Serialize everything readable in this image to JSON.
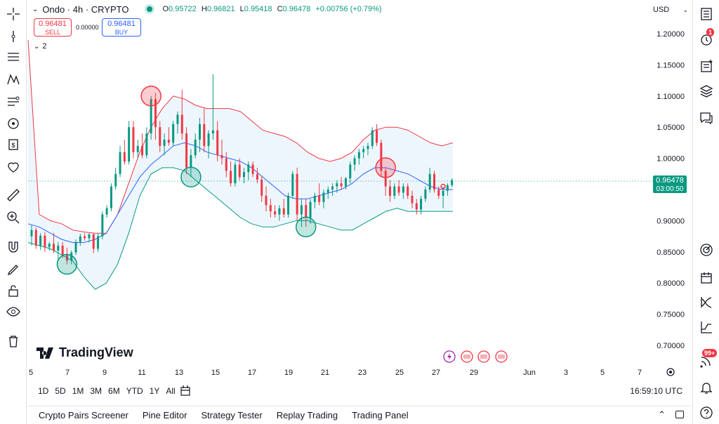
{
  "header": {
    "symbol": "Ondo · 4h · CRYPTO",
    "open_label": "O",
    "open": "0.95722",
    "high_label": "H",
    "high": "0.96821",
    "low_label": "L",
    "low": "0.95418",
    "close_label": "C",
    "close": "0.96478",
    "change": "+0.00756 (+0.79%)",
    "currency": "USD"
  },
  "trade": {
    "sell_price": "0.96481",
    "sell_label": "SELL",
    "spread": "0.00000",
    "buy_price": "0.96481",
    "buy_label": "BUY",
    "indicators_count": "2"
  },
  "price_axis": {
    "ticks": [
      "1.20000",
      "1.15000",
      "1.10000",
      "1.05000",
      "1.00000",
      "0.95000",
      "0.90000",
      "0.85000",
      "0.80000",
      "0.75000",
      "0.70000"
    ],
    "current_price": "0.96478",
    "countdown": "03:00:50"
  },
  "time_axis": {
    "ticks": [
      "5",
      "7",
      "9",
      "11",
      "13",
      "15",
      "17",
      "19",
      "21",
      "23",
      "25",
      "27",
      "29",
      "Jun",
      "3",
      "5",
      "7"
    ]
  },
  "ranges": [
    "1D",
    "5D",
    "1M",
    "3M",
    "6M",
    "YTD",
    "1Y",
    "All"
  ],
  "utc_time": "16:59:10 UTC",
  "bottom_tabs": [
    "Crypto Pairs Screener",
    "Pine Editor",
    "Strategy Tester",
    "Replay Trading",
    "Trading Panel"
  ],
  "logo_text": "TradingView",
  "badges": {
    "alerts": "1",
    "notifications": "99+"
  },
  "colors": {
    "up": "#089981",
    "down": "#f23645",
    "basis": "#2962ff",
    "upper": "#f23645",
    "lower": "#089981",
    "fill": "#e3f0fb"
  },
  "chart_data": {
    "type": "candlestick",
    "interval": "4h",
    "ylim": [
      0.68,
      1.22
    ],
    "candles": [
      {
        "o": 0.875,
        "h": 0.893,
        "l": 0.86,
        "c": 0.885
      },
      {
        "o": 0.885,
        "h": 0.889,
        "l": 0.855,
        "c": 0.86
      },
      {
        "o": 0.86,
        "h": 0.88,
        "l": 0.853,
        "c": 0.876
      },
      {
        "o": 0.876,
        "h": 0.882,
        "l": 0.85,
        "c": 0.858
      },
      {
        "o": 0.858,
        "h": 0.866,
        "l": 0.852,
        "c": 0.863
      },
      {
        "o": 0.863,
        "h": 0.88,
        "l": 0.848,
        "c": 0.852
      },
      {
        "o": 0.852,
        "h": 0.866,
        "l": 0.835,
        "c": 0.86
      },
      {
        "o": 0.86,
        "h": 0.866,
        "l": 0.84,
        "c": 0.845
      },
      {
        "o": 0.845,
        "h": 0.857,
        "l": 0.83,
        "c": 0.836
      },
      {
        "o": 0.836,
        "h": 0.852,
        "l": 0.83,
        "c": 0.849
      },
      {
        "o": 0.849,
        "h": 0.87,
        "l": 0.845,
        "c": 0.866
      },
      {
        "o": 0.866,
        "h": 0.879,
        "l": 0.86,
        "c": 0.875
      },
      {
        "o": 0.875,
        "h": 0.88,
        "l": 0.868,
        "c": 0.872
      },
      {
        "o": 0.872,
        "h": 0.88,
        "l": 0.865,
        "c": 0.878
      },
      {
        "o": 0.878,
        "h": 0.88,
        "l": 0.848,
        "c": 0.855
      },
      {
        "o": 0.855,
        "h": 0.88,
        "l": 0.85,
        "c": 0.875
      },
      {
        "o": 0.875,
        "h": 0.915,
        "l": 0.87,
        "c": 0.91
      },
      {
        "o": 0.91,
        "h": 0.925,
        "l": 0.905,
        "c": 0.92
      },
      {
        "o": 0.92,
        "h": 0.96,
        "l": 0.915,
        "c": 0.955
      },
      {
        "o": 0.955,
        "h": 0.985,
        "l": 0.95,
        "c": 0.975
      },
      {
        "o": 0.975,
        "h": 1.02,
        "l": 0.97,
        "c": 1.01
      },
      {
        "o": 1.01,
        "h": 1.03,
        "l": 0.99,
        "c": 0.995
      },
      {
        "o": 0.995,
        "h": 1.06,
        "l": 0.99,
        "c": 1.05
      },
      {
        "o": 1.05,
        "h": 1.06,
        "l": 1.0,
        "c": 1.01
      },
      {
        "o": 1.01,
        "h": 1.03,
        "l": 1.0,
        "c": 1.02
      },
      {
        "o": 1.02,
        "h": 1.04,
        "l": 1.0,
        "c": 1.005
      },
      {
        "o": 1.005,
        "h": 1.05,
        "l": 1.0,
        "c": 1.04
      },
      {
        "o": 1.04,
        "h": 1.1,
        "l": 1.03,
        "c": 1.095
      },
      {
        "o": 1.095,
        "h": 1.105,
        "l": 1.03,
        "c": 1.05
      },
      {
        "o": 1.05,
        "h": 1.06,
        "l": 1.01,
        "c": 1.02
      },
      {
        "o": 1.02,
        "h": 1.04,
        "l": 1.005,
        "c": 1.03
      },
      {
        "o": 1.03,
        "h": 1.05,
        "l": 1.02,
        "c": 1.025
      },
      {
        "o": 1.025,
        "h": 1.06,
        "l": 1.02,
        "c": 1.055
      },
      {
        "o": 1.055,
        "h": 1.075,
        "l": 1.04,
        "c": 1.07
      },
      {
        "o": 1.07,
        "h": 1.11,
        "l": 1.03,
        "c": 1.04
      },
      {
        "o": 1.04,
        "h": 1.05,
        "l": 0.975,
        "c": 0.985
      },
      {
        "o": 0.985,
        "h": 1.015,
        "l": 0.97,
        "c": 1.005
      },
      {
        "o": 1.005,
        "h": 1.04,
        "l": 1.0,
        "c": 1.03
      },
      {
        "o": 1.03,
        "h": 1.065,
        "l": 1.01,
        "c": 1.055
      },
      {
        "o": 1.055,
        "h": 1.08,
        "l": 1.01,
        "c": 1.02
      },
      {
        "o": 1.02,
        "h": 1.045,
        "l": 1.0,
        "c": 1.04
      },
      {
        "o": 1.04,
        "h": 1.135,
        "l": 1.03,
        "c": 1.045
      },
      {
        "o": 1.045,
        "h": 1.06,
        "l": 0.995,
        "c": 1.005
      },
      {
        "o": 1.005,
        "h": 1.03,
        "l": 0.99,
        "c": 1.0
      },
      {
        "o": 1.0,
        "h": 1.01,
        "l": 0.97,
        "c": 0.98
      },
      {
        "o": 0.98,
        "h": 0.995,
        "l": 0.955,
        "c": 0.96
      },
      {
        "o": 0.96,
        "h": 0.995,
        "l": 0.955,
        "c": 0.99
      },
      {
        "o": 0.99,
        "h": 1.0,
        "l": 0.965,
        "c": 0.97
      },
      {
        "o": 0.97,
        "h": 0.985,
        "l": 0.96,
        "c": 0.978
      },
      {
        "o": 0.978,
        "h": 0.995,
        "l": 0.965,
        "c": 0.99
      },
      {
        "o": 0.99,
        "h": 0.995,
        "l": 0.97,
        "c": 0.975
      },
      {
        "o": 0.975,
        "h": 0.985,
        "l": 0.96,
        "c": 0.966
      },
      {
        "o": 0.966,
        "h": 0.972,
        "l": 0.93,
        "c": 0.94
      },
      {
        "o": 0.94,
        "h": 0.955,
        "l": 0.915,
        "c": 0.925
      },
      {
        "o": 0.925,
        "h": 0.935,
        "l": 0.905,
        "c": 0.915
      },
      {
        "o": 0.915,
        "h": 0.925,
        "l": 0.905,
        "c": 0.91
      },
      {
        "o": 0.91,
        "h": 0.925,
        "l": 0.9,
        "c": 0.92
      },
      {
        "o": 0.92,
        "h": 0.935,
        "l": 0.905,
        "c": 0.91
      },
      {
        "o": 0.91,
        "h": 0.945,
        "l": 0.905,
        "c": 0.94
      },
      {
        "o": 0.94,
        "h": 0.98,
        "l": 0.935,
        "c": 0.975
      },
      {
        "o": 0.975,
        "h": 0.985,
        "l": 0.9,
        "c": 0.91
      },
      {
        "o": 0.91,
        "h": 0.935,
        "l": 0.89,
        "c": 0.925
      },
      {
        "o": 0.925,
        "h": 0.935,
        "l": 0.89,
        "c": 0.905
      },
      {
        "o": 0.905,
        "h": 0.935,
        "l": 0.895,
        "c": 0.93
      },
      {
        "o": 0.93,
        "h": 0.945,
        "l": 0.92,
        "c": 0.94
      },
      {
        "o": 0.94,
        "h": 0.96,
        "l": 0.925,
        "c": 0.93
      },
      {
        "o": 0.93,
        "h": 0.95,
        "l": 0.92,
        "c": 0.945
      },
      {
        "o": 0.945,
        "h": 0.955,
        "l": 0.935,
        "c": 0.95
      },
      {
        "o": 0.95,
        "h": 0.96,
        "l": 0.94,
        "c": 0.955
      },
      {
        "o": 0.955,
        "h": 0.965,
        "l": 0.945,
        "c": 0.96
      },
      {
        "o": 0.96,
        "h": 0.97,
        "l": 0.95,
        "c": 0.955
      },
      {
        "o": 0.955,
        "h": 0.97,
        "l": 0.95,
        "c": 0.968
      },
      {
        "o": 0.968,
        "h": 0.995,
        "l": 0.96,
        "c": 0.99
      },
      {
        "o": 0.99,
        "h": 1.005,
        "l": 0.98,
        "c": 1.0
      },
      {
        "o": 1.0,
        "h": 1.015,
        "l": 0.99,
        "c": 1.01
      },
      {
        "o": 1.01,
        "h": 1.02,
        "l": 1.0,
        "c": 1.015
      },
      {
        "o": 1.015,
        "h": 1.025,
        "l": 1.005,
        "c": 1.02
      },
      {
        "o": 1.02,
        "h": 1.05,
        "l": 1.015,
        "c": 1.045
      },
      {
        "o": 1.045,
        "h": 1.055,
        "l": 1.02,
        "c": 1.025
      },
      {
        "o": 1.025,
        "h": 1.03,
        "l": 0.97,
        "c": 0.98
      },
      {
        "o": 0.98,
        "h": 0.985,
        "l": 0.94,
        "c": 0.955
      },
      {
        "o": 0.955,
        "h": 0.965,
        "l": 0.93,
        "c": 0.94
      },
      {
        "o": 0.94,
        "h": 0.96,
        "l": 0.935,
        "c": 0.955
      },
      {
        "o": 0.955,
        "h": 0.965,
        "l": 0.94,
        "c": 0.945
      },
      {
        "o": 0.945,
        "h": 0.96,
        "l": 0.935,
        "c": 0.955
      },
      {
        "o": 0.955,
        "h": 0.96,
        "l": 0.935,
        "c": 0.94
      },
      {
        "o": 0.94,
        "h": 0.948,
        "l": 0.92,
        "c": 0.928
      },
      {
        "o": 0.928,
        "h": 0.935,
        "l": 0.91,
        "c": 0.918
      },
      {
        "o": 0.918,
        "h": 0.94,
        "l": 0.91,
        "c": 0.935
      },
      {
        "o": 0.935,
        "h": 0.955,
        "l": 0.93,
        "c": 0.95
      },
      {
        "o": 0.95,
        "h": 0.985,
        "l": 0.945,
        "c": 0.975
      },
      {
        "o": 0.975,
        "h": 0.98,
        "l": 0.945,
        "c": 0.95
      },
      {
        "o": 0.95,
        "h": 0.955,
        "l": 0.935,
        "c": 0.94
      },
      {
        "o": 0.94,
        "h": 0.955,
        "l": 0.92,
        "c": 0.948
      },
      {
        "o": 0.948,
        "h": 0.96,
        "l": 0.94,
        "c": 0.957
      },
      {
        "o": 0.957,
        "h": 0.968,
        "l": 0.954,
        "c": 0.965
      }
    ],
    "bollinger": {
      "upper": [
        1.19,
        0.91,
        0.9,
        0.895,
        0.885,
        0.882,
        0.88,
        0.88,
        0.91,
        0.96,
        1.01,
        1.05,
        1.08,
        1.1,
        1.095,
        1.085,
        1.08,
        1.08,
        1.08,
        1.075,
        1.06,
        1.045,
        1.04,
        1.035,
        1.025,
        1.01,
        1.0,
        0.995,
        1.0,
        1.01,
        1.03,
        1.045,
        1.05,
        1.05,
        1.045,
        1.035,
        1.025,
        1.02,
        1.025
      ],
      "basis": [
        0.895,
        0.89,
        0.88,
        0.87,
        0.865,
        0.865,
        0.87,
        0.88,
        0.91,
        0.94,
        0.97,
        0.99,
        1.005,
        1.02,
        1.025,
        1.02,
        1.01,
        1.005,
        1.0,
        0.995,
        0.985,
        0.97,
        0.955,
        0.94,
        0.935,
        0.935,
        0.94,
        0.945,
        0.95,
        0.96,
        0.975,
        0.985,
        0.985,
        0.98,
        0.975,
        0.965,
        0.955,
        0.95,
        0.95
      ],
      "lower": [
        0.865,
        0.86,
        0.855,
        0.845,
        0.835,
        0.81,
        0.79,
        0.8,
        0.83,
        0.88,
        0.94,
        0.975,
        0.985,
        0.985,
        0.98,
        0.965,
        0.95,
        0.935,
        0.92,
        0.905,
        0.895,
        0.89,
        0.89,
        0.895,
        0.9,
        0.9,
        0.895,
        0.89,
        0.885,
        0.885,
        0.895,
        0.905,
        0.915,
        0.92,
        0.915,
        0.915,
        0.915,
        0.915,
        0.915
      ]
    },
    "markers": [
      {
        "type": "high",
        "candle": 27
      },
      {
        "type": "low",
        "candle": 8
      },
      {
        "type": "low",
        "candle": 36
      },
      {
        "type": "high",
        "candle": 80
      },
      {
        "type": "low",
        "candle": 62
      },
      {
        "type": "high",
        "candle": 93
      }
    ]
  }
}
